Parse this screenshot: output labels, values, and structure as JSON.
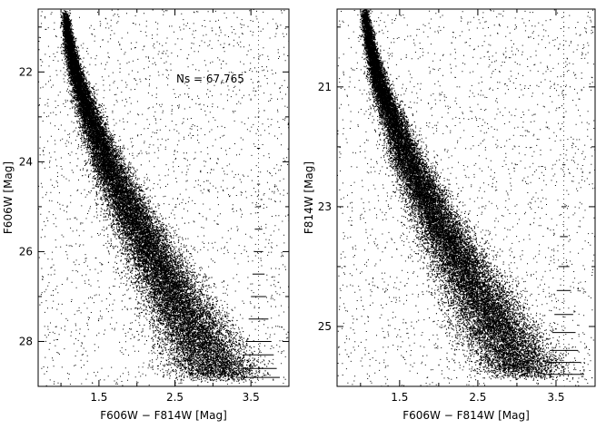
{
  "chart_data": [
    {
      "type": "scatter",
      "title": "",
      "annotation": "Ns = 67,765",
      "xlabel": "F606W − F814W [Mag]",
      "ylabel": "F606W [Mag]",
      "xlim": [
        0.7,
        4.0
      ],
      "ylim": [
        29.0,
        20.6
      ],
      "y_inverted": true,
      "x_ticks": [
        1.5,
        2.5,
        3.5
      ],
      "x_tick_labels": [
        "1.5",
        "2.5",
        "3.5"
      ],
      "y_ticks": [
        22,
        24,
        26,
        28
      ],
      "y_tick_labels": [
        "22",
        "24",
        "26",
        "28"
      ],
      "n_stars": 67765,
      "ridge_line": {
        "x": [
          1.05,
          1.12,
          1.22,
          1.38,
          1.6,
          1.88,
          2.18,
          2.5,
          2.82,
          3.1
        ],
        "y": [
          20.7,
          21.5,
          22.2,
          23.0,
          24.0,
          25.0,
          26.0,
          27.0,
          28.0,
          28.8
        ]
      },
      "error_bars": {
        "x": 3.6,
        "y": [
          21.0,
          22.0,
          23.0,
          23.7,
          24.5,
          25.0,
          25.5,
          26.0,
          26.5,
          27.0,
          27.5,
          28.0,
          28.3,
          28.6,
          28.8
        ],
        "xerr": [
          0.005,
          0.006,
          0.01,
          0.02,
          0.02,
          0.03,
          0.05,
          0.06,
          0.08,
          0.1,
          0.13,
          0.17,
          0.2,
          0.24,
          0.28
        ]
      }
    },
    {
      "type": "scatter",
      "title": "",
      "xlabel": "F606W − F814W [Mag]",
      "ylabel": "F814W [Mag]",
      "xlim": [
        0.7,
        4.0
      ],
      "ylim": [
        26.0,
        19.7
      ],
      "y_inverted": true,
      "x_ticks": [
        1.5,
        2.5,
        3.5
      ],
      "x_tick_labels": [
        "1.5",
        "2.5",
        "3.5"
      ],
      "y_ticks": [
        21,
        23,
        25
      ],
      "y_tick_labels": [
        "21",
        "23",
        "25"
      ],
      "ridge_line": {
        "x": [
          1.05,
          1.12,
          1.22,
          1.38,
          1.6,
          1.88,
          2.18,
          2.5,
          2.82,
          3.1
        ],
        "y": [
          19.75,
          20.3,
          20.85,
          21.45,
          22.2,
          22.95,
          23.7,
          24.45,
          25.2,
          25.8
        ]
      },
      "error_bars": {
        "x": 3.6,
        "y": [
          20.0,
          20.8,
          21.5,
          22.3,
          23.0,
          23.5,
          24.0,
          24.4,
          24.8,
          25.1,
          25.4,
          25.6,
          25.8
        ],
        "xerr": [
          0.005,
          0.008,
          0.012,
          0.02,
          0.03,
          0.05,
          0.07,
          0.09,
          0.12,
          0.15,
          0.18,
          0.22,
          0.26
        ]
      }
    }
  ]
}
